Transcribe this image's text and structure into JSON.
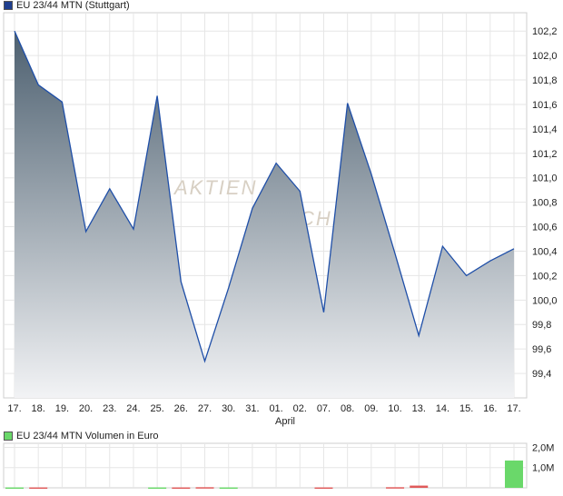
{
  "price_chart": {
    "legend_label": "EU 23/44 MTN (Stuttgart)",
    "legend_color": "#1f3f8f",
    "watermark_line1": "AKTIEN",
    "watermark_line2": "CHECK"
  },
  "volume_chart": {
    "legend_label": "EU 23/44 MTN Volumen in Euro",
    "legend_color": "#6ad86a"
  },
  "month_label": "April",
  "chart_data": [
    {
      "type": "area",
      "title": "EU 23/44 MTN (Stuttgart)",
      "categories": [
        "17.",
        "18.",
        "19.",
        "20.",
        "23.",
        "24.",
        "25.",
        "26.",
        "27.",
        "30.",
        "31.",
        "01.",
        "02.",
        "07.",
        "08.",
        "09.",
        "10.",
        "13.",
        "14.",
        "15.",
        "16.",
        "17."
      ],
      "values": [
        102.2,
        101.76,
        101.62,
        100.56,
        100.91,
        100.58,
        101.67,
        100.15,
        99.5,
        100.1,
        100.75,
        101.12,
        100.89,
        99.9,
        101.61,
        101.03,
        100.38,
        99.71,
        100.44,
        100.2,
        100.32,
        100.42
      ],
      "ylim": [
        99.2,
        102.35
      ],
      "yticks": [
        "99,4",
        "99,6",
        "99,8",
        "100,0",
        "100,2",
        "100,4",
        "100,6",
        "100,8",
        "101,0",
        "101,2",
        "101,4",
        "101,6",
        "101,8",
        "102,0",
        "102,2"
      ],
      "line_color": "#1f4fa8",
      "fill_top": "#4d6070",
      "fill_bottom": "#f2f3f5",
      "grid": true
    },
    {
      "type": "bar",
      "title": "EU 23/44 MTN Volumen in Euro",
      "categories": [
        "17.",
        "18.",
        "19.",
        "20.",
        "23.",
        "24.",
        "25.",
        "26.",
        "27.",
        "30.",
        "31.",
        "01.",
        "02.",
        "07.",
        "08.",
        "09.",
        "10.",
        "13.",
        "14.",
        "15.",
        "16.",
        "17."
      ],
      "values": [
        0.02,
        0.02,
        0,
        0,
        0,
        0,
        0.02,
        0.02,
        0.03,
        0.02,
        0,
        0,
        0,
        0.02,
        0,
        0,
        0.03,
        0.11,
        0,
        0,
        0,
        1.35
      ],
      "up": [
        true,
        false,
        true,
        true,
        true,
        true,
        true,
        false,
        false,
        true,
        true,
        true,
        true,
        false,
        true,
        true,
        false,
        false,
        true,
        true,
        true,
        true
      ],
      "ylim": [
        0,
        2.2
      ],
      "yticks": [
        "1,0M",
        "2,0M"
      ],
      "up_color": "#6ad86a",
      "down_color": "#e05a5a",
      "grid": true
    }
  ]
}
